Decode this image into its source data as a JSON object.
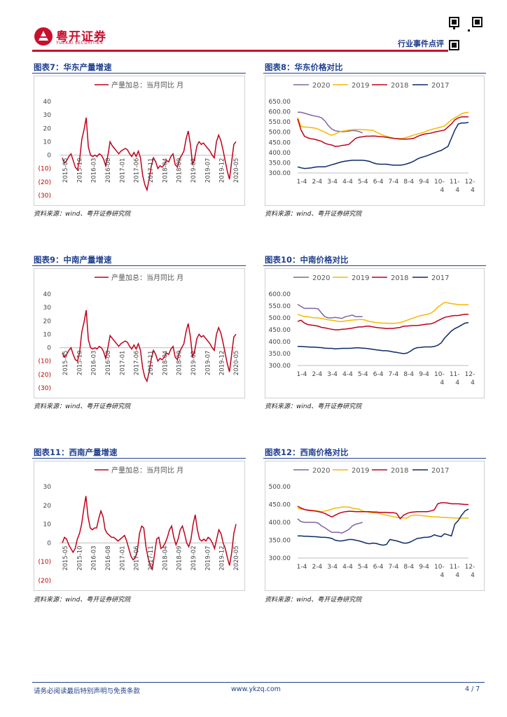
{
  "header": {
    "brand_cn": "粤开证券",
    "brand_en": "YUEKAI SECURITIES",
    "report_type": "行业事件点评"
  },
  "source_note": "资料来源：wind、粤开证券研究院",
  "footer": {
    "disclaimer": "请务必阅读最后特别声明与免责条款",
    "url": "www.ykzq.com",
    "page": "4 / 7"
  },
  "colors": {
    "brand_red": "#c8102e",
    "title_blue": "#1f3f8f",
    "series_2020": "#8064a2",
    "series_2019": "#f5b800",
    "series_2018": "#c0001a",
    "series_2017": "#0b2a66"
  },
  "panels": {
    "p7": {
      "title": "图表7：华东产量增速"
    },
    "p8": {
      "title": "图表8：华东价格对比"
    },
    "p9": {
      "title": "图表9：中南产量增速"
    },
    "p10": {
      "title": "图表10：中南价格对比"
    },
    "p11": {
      "title": "图表11：西南产量增速"
    },
    "p12": {
      "title": "图表12：西南价格对比"
    }
  },
  "chart_data": [
    {
      "id": "p7",
      "type": "line",
      "title": "",
      "legend": [
        "产量加总：当月同比 月"
      ],
      "ylim": [
        -30,
        40
      ],
      "yticks": [
        "40",
        "30",
        "20",
        "10",
        "0",
        "(10)",
        "(20)",
        "(30)"
      ],
      "xticks": [
        "2015-05",
        "2015-10",
        "2016-03",
        "2016-08",
        "2017-01",
        "2017-06",
        "2017-11",
        "2018-04",
        "2018-09",
        "2019-02",
        "2019-07",
        "2019-12",
        "2020-05"
      ],
      "series": [
        {
          "name": "产量加总：当月同比 月",
          "values": [
            -2,
            -6,
            -4,
            -1,
            1,
            -4,
            -9,
            -11,
            -3,
            12,
            19,
            28,
            6,
            0,
            -1,
            0,
            -1,
            1,
            0,
            -3,
            -8,
            0,
            10,
            7,
            5,
            3,
            1,
            3,
            4,
            5,
            4,
            1,
            -1,
            2,
            -1,
            3,
            -2,
            -15,
            -22,
            -26,
            -18,
            -8,
            -2,
            -5,
            -10,
            -8,
            -9,
            -7,
            -4,
            -5,
            -1,
            1,
            -7,
            -9,
            -3,
            0,
            3,
            12,
            18,
            8,
            -7,
            -2,
            7,
            10,
            8,
            9,
            7,
            5,
            3,
            0,
            -2,
            10,
            15,
            11,
            4,
            -4,
            -12,
            -18,
            -5,
            8,
            10
          ]
        }
      ]
    },
    {
      "id": "p8",
      "type": "line",
      "title": "",
      "ylim": [
        300,
        650
      ],
      "yticks": [
        "650.00",
        "600.00",
        "550.00",
        "500.00",
        "450.00",
        "400.00",
        "350.00",
        "300.00"
      ],
      "xticks": [
        "1-4",
        "2-4",
        "3-4",
        "4-4",
        "5-4",
        "6-4",
        "7-4",
        "8-4",
        "9-4",
        "10-4",
        "11-4",
        "12-4"
      ],
      "series": [
        {
          "name": "2020",
          "values": [
            598,
            597,
            593,
            588,
            583,
            579,
            576,
            570,
            555,
            532,
            515,
            507,
            504,
            502,
            503,
            505,
            508,
            507,
            503,
            496
          ]
        },
        {
          "name": "2019",
          "values": [
            572,
            528,
            525,
            524,
            522,
            520,
            515,
            507,
            500,
            490,
            485,
            490,
            500,
            505,
            507,
            510,
            512,
            513,
            513,
            512,
            511,
            510,
            509,
            500,
            492,
            485,
            480,
            475,
            470,
            469,
            468,
            470,
            475,
            480,
            486,
            490,
            495,
            500,
            507,
            512,
            517,
            521,
            525,
            530,
            545,
            560,
            570,
            580,
            590,
            595,
            598
          ]
        },
        {
          "name": "2018",
          "values": [
            565,
            510,
            480,
            472,
            467,
            465,
            460,
            455,
            445,
            440,
            437,
            430,
            431,
            435,
            437,
            440,
            455,
            470,
            475,
            477,
            480,
            480,
            481,
            480,
            478,
            477,
            475,
            472,
            470,
            468,
            466,
            466,
            466,
            467,
            470,
            478,
            485,
            490,
            493,
            495,
            500,
            503,
            507,
            510,
            525,
            540,
            560,
            570,
            575,
            575,
            575
          ]
        },
        {
          "name": "2017",
          "values": [
            330,
            325,
            322,
            323,
            325,
            328,
            330,
            330,
            330,
            335,
            340,
            345,
            350,
            355,
            358,
            360,
            362,
            362,
            362,
            362,
            360,
            357,
            350,
            345,
            343,
            343,
            343,
            340,
            338,
            338,
            338,
            340,
            345,
            350,
            358,
            368,
            375,
            380,
            385,
            392,
            398,
            405,
            410,
            420,
            430,
            470,
            510,
            540,
            545,
            545,
            548
          ]
        }
      ]
    },
    {
      "id": "p9",
      "type": "line",
      "title": "",
      "legend": [
        "产量加总：当月同比 月"
      ],
      "ylim": [
        -30,
        40
      ],
      "yticks": [
        "40",
        "30",
        "20",
        "10",
        "0",
        "(10)",
        "(20)",
        "(30)"
      ],
      "xticks": [
        "2015-05",
        "2015-10",
        "2016-03",
        "2016-08",
        "2017-01",
        "2017-06",
        "2017-11",
        "2018-04",
        "2018-09",
        "2019-02",
        "2019-07",
        "2019-12",
        "2020-05"
      ],
      "series": [
        {
          "name": "产量加总：当月同比 月",
          "values": [
            -4,
            -7,
            -5,
            -2,
            0,
            -5,
            -9,
            -10,
            -3,
            12,
            19,
            28,
            6,
            0,
            -1,
            0,
            -1,
            1,
            0,
            -3,
            -8,
            0,
            9,
            7,
            5,
            3,
            1,
            3,
            4,
            5,
            4,
            1,
            -1,
            2,
            -1,
            3,
            -2,
            -15,
            -22,
            -25,
            -18,
            -8,
            -2,
            -5,
            -10,
            -8,
            -9,
            -7,
            -4,
            -5,
            -1,
            1,
            -7,
            -9,
            -3,
            0,
            3,
            12,
            18,
            8,
            -7,
            -2,
            7,
            10,
            8,
            9,
            7,
            5,
            3,
            0,
            -2,
            10,
            15,
            11,
            4,
            -4,
            -12,
            -18,
            -5,
            8,
            10
          ]
        }
      ]
    },
    {
      "id": "p10",
      "type": "line",
      "title": "",
      "ylim": [
        300,
        600
      ],
      "yticks": [
        "600.00",
        "550.00",
        "500.00",
        "450.00",
        "400.00",
        "350.00",
        "300.00"
      ],
      "xticks": [
        "1-4",
        "2-4",
        "3-4",
        "4-4",
        "5-4",
        "6-4",
        "7-4",
        "8-4",
        "9-4",
        "10-4",
        "11-4",
        "12-4"
      ],
      "series": [
        {
          "name": "2020",
          "values": [
            557,
            548,
            540,
            540,
            540,
            540,
            538,
            520,
            505,
            500,
            500,
            502,
            500,
            498,
            505,
            508,
            512,
            505,
            505,
            505
          ]
        },
        {
          "name": "2019",
          "values": [
            515,
            510,
            505,
            505,
            502,
            500,
            500,
            497,
            495,
            492,
            490,
            488,
            485,
            485,
            487,
            489,
            491,
            492,
            493,
            493,
            490,
            485,
            483,
            480,
            479,
            478,
            478,
            477,
            477,
            478,
            480,
            485,
            490,
            495,
            500,
            505,
            510,
            512,
            515,
            520,
            530,
            545,
            555,
            565,
            563,
            560,
            558,
            556,
            555,
            555,
            555
          ]
        },
        {
          "name": "2018",
          "values": [
            485,
            490,
            478,
            472,
            470,
            468,
            465,
            460,
            458,
            455,
            452,
            450,
            450,
            452,
            453,
            455,
            457,
            460,
            462,
            462,
            465,
            465,
            462,
            460,
            458,
            457,
            455,
            456,
            456,
            458,
            460,
            465,
            466,
            467,
            468,
            468,
            470,
            472,
            474,
            475,
            480,
            488,
            495,
            502,
            505,
            508,
            510,
            510,
            513,
            515,
            515
          ]
        },
        {
          "name": "2017",
          "values": [
            380,
            380,
            379,
            378,
            377,
            377,
            376,
            375,
            373,
            372,
            372,
            370,
            371,
            372,
            372,
            372,
            373,
            374,
            374,
            373,
            372,
            370,
            368,
            366,
            364,
            362,
            362,
            360,
            357,
            355,
            352,
            350,
            352,
            360,
            370,
            375,
            376,
            378,
            378,
            378,
            380,
            385,
            395,
            415,
            430,
            445,
            455,
            462,
            470,
            478,
            480
          ]
        }
      ]
    },
    {
      "id": "p11",
      "type": "line",
      "title": "",
      "legend": [
        "产量加总：当月同比 月"
      ],
      "ylim": [
        -20,
        30
      ],
      "yticks": [
        "30",
        "20",
        "10",
        "0",
        "(10)",
        "(20)"
      ],
      "xticks": [
        "2015-05",
        "2015-10",
        "2016-03",
        "2016-08",
        "2017-01",
        "2017-06",
        "2017-11",
        "2018-04",
        "2018-09",
        "2019-02",
        "2019-07",
        "2019-12",
        "2020-05"
      ],
      "series": [
        {
          "name": "产量加总：当月同比 月",
          "values": [
            0,
            3,
            2,
            -1,
            -3,
            -5,
            -3,
            2,
            5,
            10,
            18,
            25,
            14,
            8,
            7,
            8,
            8,
            13,
            17,
            14,
            7,
            5,
            4,
            3,
            3,
            2,
            1,
            2,
            3,
            4,
            1,
            -3,
            -7,
            -9,
            -8,
            -4,
            5,
            9,
            8,
            -2,
            -8,
            -12,
            -14,
            -6,
            2,
            3,
            -3,
            -2,
            0,
            3,
            7,
            9,
            3,
            -1,
            2,
            7,
            9,
            5,
            0,
            -2,
            2,
            10,
            15,
            7,
            2,
            1,
            2,
            1,
            3,
            2,
            0,
            -3,
            2,
            7,
            5,
            0,
            -3,
            -8,
            -12,
            -5,
            5,
            10
          ]
        }
      ]
    },
    {
      "id": "p12",
      "type": "line",
      "title": "",
      "ylim": [
        300,
        500
      ],
      "yticks": [
        "500.00",
        "450.00",
        "400.00",
        "350.00",
        "300.00"
      ],
      "xticks": [
        "1-4",
        "2-4",
        "3-4",
        "4-4",
        "5-4",
        "6-4",
        "7-4",
        "8-4",
        "9-4",
        "10-4",
        "11-4",
        "12-4"
      ],
      "series": [
        {
          "name": "2020",
          "values": [
            410,
            402,
            400,
            400,
            400,
            400,
            398,
            390,
            385,
            378,
            372,
            372,
            372,
            370,
            375,
            380,
            390,
            395,
            397,
            400
          ]
        },
        {
          "name": "2019",
          "values": [
            440,
            437,
            436,
            435,
            434,
            433,
            432,
            430,
            432,
            434,
            437,
            440,
            441,
            443,
            443,
            443,
            440,
            438,
            437,
            432,
            430,
            428,
            427,
            426,
            425,
            422,
            420,
            418,
            416,
            414,
            413,
            412,
            412,
            418,
            420,
            420,
            419,
            418,
            417,
            416,
            415,
            415,
            414,
            414,
            413,
            413,
            412,
            412,
            412,
            412,
            412
          ]
        },
        {
          "name": "2018",
          "values": [
            445,
            440,
            436,
            434,
            433,
            432,
            430,
            428,
            425,
            420,
            415,
            420,
            425,
            428,
            430,
            431,
            431,
            430,
            430,
            430,
            430,
            430,
            429,
            429,
            428,
            428,
            428,
            427,
            427,
            425,
            410,
            420,
            425,
            428,
            429,
            430,
            430,
            430,
            430,
            432,
            435,
            452,
            455,
            455,
            454,
            452,
            452,
            452,
            451,
            450,
            450
          ]
        },
        {
          "name": "2017",
          "values": [
            362,
            362,
            361,
            361,
            360,
            360,
            359,
            358,
            358,
            357,
            355,
            350,
            348,
            348,
            350,
            352,
            352,
            350,
            348,
            345,
            342,
            340,
            342,
            341,
            338,
            336,
            338,
            352,
            350,
            348,
            345,
            342,
            342,
            345,
            350,
            355,
            356,
            358,
            358,
            360,
            365,
            362,
            360,
            368,
            365,
            362,
            395,
            405,
            420,
            432,
            437
          ]
        }
      ]
    }
  ]
}
